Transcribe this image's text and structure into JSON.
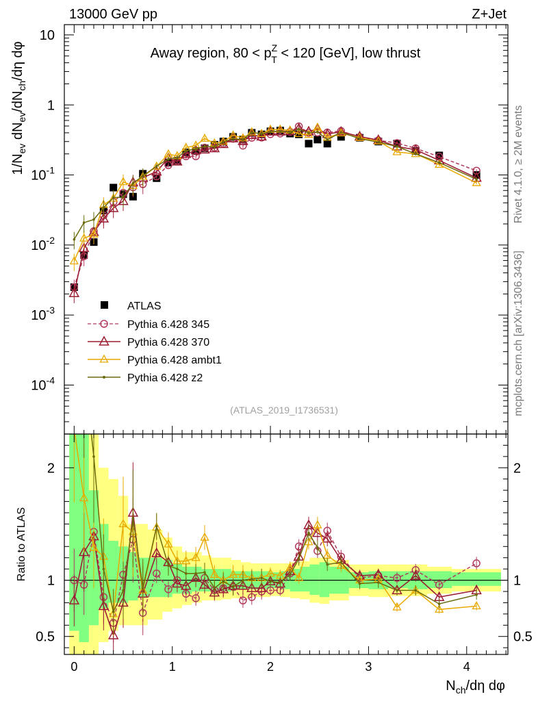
{
  "header": {
    "left": "13000 GeV pp",
    "right": "Z+Jet"
  },
  "side": {
    "rivet": "Rivet 4.1.0, ≥ 2M events",
    "mcplots": "mcplots.cern.ch [arXiv:1306.3436]"
  },
  "chart_data": {
    "type": "line",
    "title": "Away region, 80 < pT^Z < 120 [GeV], low thrust",
    "title_parts": {
      "a": "Away region, 80 < p",
      "sup": "Z",
      "sub": "T",
      "b": " < 120 [GeV], low thrust"
    },
    "analysis_id": "(ATLAS_2019_I1736531)",
    "xlabel": "Nch/dη dφ",
    "xlabel_parts": {
      "a": "N",
      "sub": "ch",
      "b": "/dη dφ"
    },
    "ylabel": "1/Nev dNev/dNch/dη dφ",
    "ylabel_parts": {
      "a": "1/N",
      "sub1": "ev",
      "b": " dN",
      "sub2": "ev",
      "c": "/dN",
      "sub3": "ch",
      "d": "/dη dφ"
    },
    "ratio_ylabel": "Ratio to ATLAS",
    "xlim": [
      -0.1,
      4.42
    ],
    "ylim": [
      2e-05,
      14
    ],
    "yscale": "log",
    "ratio_ylim": [
      0.34,
      2.3
    ],
    "x_ticks": [
      "0",
      "1",
      "2",
      "3",
      "4"
    ],
    "y_ticks": [
      "10",
      "1",
      "10^-1",
      "10^-2",
      "10^-3",
      "10^-4"
    ],
    "ratio_ticks": [
      "0.5",
      "1",
      "2"
    ],
    "legend_position": "center-left",
    "x": [
      0.0,
      0.1,
      0.2,
      0.3,
      0.4,
      0.5,
      0.6,
      0.7,
      0.84,
      0.96,
      1.05,
      1.14,
      1.24,
      1.33,
      1.43,
      1.52,
      1.62,
      1.72,
      1.81,
      1.91,
      2.0,
      2.1,
      2.2,
      2.29,
      2.39,
      2.48,
      2.58,
      2.72,
      2.91,
      3.1,
      3.29,
      3.48,
      3.72,
      4.1
    ],
    "series": [
      {
        "name": "ATLAS",
        "style": "data",
        "color": "#000000",
        "values": [
          0.0025,
          0.0072,
          0.011,
          0.031,
          0.066,
          0.053,
          0.049,
          0.104,
          0.09,
          0.15,
          0.16,
          0.21,
          0.22,
          0.24,
          0.27,
          0.3,
          0.35,
          0.32,
          0.4,
          0.38,
          0.42,
          0.43,
          0.39,
          0.38,
          0.28,
          0.32,
          0.28,
          0.35,
          0.34,
          0.3,
          0.28,
          0.22,
          0.19,
          0.1
        ]
      },
      {
        "name": "Pythia 6.428 345",
        "style": "circle-dashed",
        "color": "#b03a5b",
        "ratio": [
          1.0,
          0.96,
          1.43,
          0.85,
          0.62,
          1.05,
          1.36,
          0.71,
          1.06,
          0.92,
          1.0,
          0.88,
          0.84,
          1.02,
          0.91,
          0.93,
          0.94,
          0.82,
          0.85,
          0.9,
          0.91,
          0.91,
          1.06,
          1.3,
          1.43,
          1.26,
          1.44,
          1.21,
          1.02,
          1.04,
          1.02,
          1.09,
          0.96,
          1.15
        ]
      },
      {
        "name": "Pythia 6.428 370",
        "style": "triangle-solid",
        "color": "#9b1d33",
        "ratio": [
          0.82,
          1.25,
          1.39,
          0.77,
          0.51,
          0.8,
          1.6,
          0.88,
          1.24,
          1.16,
          0.97,
          0.95,
          1.02,
          0.96,
          0.89,
          0.92,
          0.95,
          0.95,
          0.93,
          0.93,
          0.99,
          0.97,
          1.08,
          1.21,
          1.49,
          1.42,
          1.37,
          1.18,
          1.04,
          1.05,
          0.91,
          1.04,
          0.85,
          0.91
        ]
      },
      {
        "name": "Pythia 6.428 ambt1",
        "style": "triangle-light",
        "color": "#e8a900",
        "ratio": [
          2.35,
          1.73,
          1.29,
          1.21,
          0.7,
          1.5,
          1.43,
          0.91,
          1.47,
          1.32,
          1.17,
          1.17,
          1.2,
          1.38,
          1.05,
          1.0,
          1.05,
          1.05,
          1.02,
          1.02,
          1.06,
          1.04,
          1.11,
          1.02,
          1.34,
          1.49,
          1.22,
          1.13,
          1.0,
          1.01,
          0.76,
          0.91,
          0.74,
          0.77
        ]
      },
      {
        "name": "Pythia 6.428 z2",
        "style": "dot-line",
        "color": "#6b6b0d",
        "ratio": [
          4.8,
          2.9,
          2.1,
          1.1,
          0.72,
          0.91,
          1.55,
          0.93,
          1.48,
          1.13,
          1.1,
          1.06,
          1.06,
          1.07,
          0.93,
          0.99,
          0.94,
          1.0,
          1.01,
          1.02,
          0.99,
          0.98,
          1.05,
          1.19,
          1.42,
          1.29,
          1.14,
          1.16,
          0.97,
          0.98,
          0.91,
          0.91,
          0.79,
          0.87
        ]
      }
    ],
    "band_edges": [
      -0.05,
      0.05,
      0.15,
      0.25,
      0.35,
      0.45,
      0.55,
      0.65,
      0.75,
      0.9,
      1.0,
      1.1,
      1.2,
      1.3,
      1.4,
      1.5,
      1.6,
      1.7,
      1.8,
      1.9,
      2.0,
      2.1,
      2.2,
      2.3,
      2.4,
      2.5,
      2.6,
      2.8,
      3.0,
      3.2,
      3.4,
      3.6,
      3.85,
      4.35
    ],
    "band_stat": [
      [
        0.55,
        2.3
      ],
      [
        0.45,
        2.3
      ],
      [
        0.6,
        1.8
      ],
      [
        0.75,
        1.5
      ],
      [
        0.8,
        1.35
      ],
      [
        0.8,
        1.3
      ],
      [
        0.82,
        1.25
      ],
      [
        0.85,
        1.2
      ],
      [
        0.85,
        1.2
      ],
      [
        0.85,
        1.18
      ],
      [
        0.88,
        1.15
      ],
      [
        0.88,
        1.12
      ],
      [
        0.9,
        1.12
      ],
      [
        0.9,
        1.1
      ],
      [
        0.9,
        1.1
      ],
      [
        0.9,
        1.1
      ],
      [
        0.92,
        1.08
      ],
      [
        0.92,
        1.08
      ],
      [
        0.92,
        1.08
      ],
      [
        0.92,
        1.08
      ],
      [
        0.93,
        1.07
      ],
      [
        0.92,
        1.08
      ],
      [
        0.9,
        1.1
      ],
      [
        0.9,
        1.12
      ],
      [
        0.87,
        1.14
      ],
      [
        0.85,
        1.16
      ],
      [
        0.88,
        1.12
      ],
      [
        0.93,
        1.07
      ],
      [
        0.92,
        1.08
      ],
      [
        0.93,
        1.08
      ],
      [
        0.92,
        1.08
      ],
      [
        0.93,
        1.08
      ],
      [
        0.95,
        1.07
      ]
    ],
    "band_syst": [
      [
        0.34,
        2.3
      ],
      [
        0.34,
        2.3
      ],
      [
        0.34,
        2.3
      ],
      [
        0.45,
        2.0
      ],
      [
        0.55,
        1.9
      ],
      [
        0.6,
        1.75
      ],
      [
        0.6,
        1.5
      ],
      [
        0.6,
        1.5
      ],
      [
        0.65,
        1.45
      ],
      [
        0.72,
        1.38
      ],
      [
        0.75,
        1.3
      ],
      [
        0.78,
        1.25
      ],
      [
        0.8,
        1.25
      ],
      [
        0.82,
        1.22
      ],
      [
        0.82,
        1.2
      ],
      [
        0.83,
        1.2
      ],
      [
        0.84,
        1.18
      ],
      [
        0.84,
        1.16
      ],
      [
        0.85,
        1.15
      ],
      [
        0.85,
        1.15
      ],
      [
        0.86,
        1.15
      ],
      [
        0.85,
        1.15
      ],
      [
        0.84,
        1.16
      ],
      [
        0.83,
        1.17
      ],
      [
        0.8,
        1.2
      ],
      [
        0.79,
        1.2
      ],
      [
        0.82,
        1.18
      ],
      [
        0.86,
        1.14
      ],
      [
        0.85,
        1.14
      ],
      [
        0.86,
        1.14
      ],
      [
        0.86,
        1.14
      ],
      [
        0.88,
        1.12
      ],
      [
        0.9,
        1.1
      ]
    ]
  }
}
